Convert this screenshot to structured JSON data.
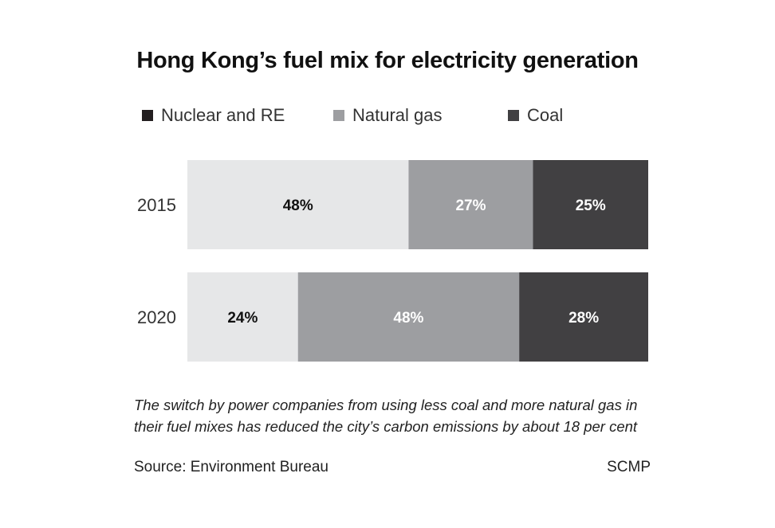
{
  "chart_data": {
    "type": "bar",
    "orientation": "horizontal",
    "stacked": true,
    "title": "Hong Kong’s fuel mix for electricity generation",
    "categories": [
      "2015",
      "2020"
    ],
    "series": [
      {
        "name": "Nuclear and RE",
        "values": [
          48,
          24
        ],
        "color": "#e6e7e8",
        "legend_color": "#231f20",
        "label_color": "#111111"
      },
      {
        "name": "Natural gas",
        "values": [
          27,
          48
        ],
        "color": "#9d9ea1",
        "legend_color": "#9d9ea1",
        "label_color": "#ffffff"
      },
      {
        "name": "Coal",
        "values": [
          25,
          28
        ],
        "color": "#414042",
        "legend_color": "#414042",
        "label_color": "#ffffff"
      }
    ],
    "unit": "%",
    "xlim": [
      0,
      100
    ],
    "grid": false,
    "legend_position": "top",
    "annotation": "The switch by power companies from using less coal and more natural gas in their fuel mixes has reduced the city’s carbon emissions by about 18 per cent",
    "source": "Source: Environment Bureau",
    "credit": "SCMP"
  }
}
